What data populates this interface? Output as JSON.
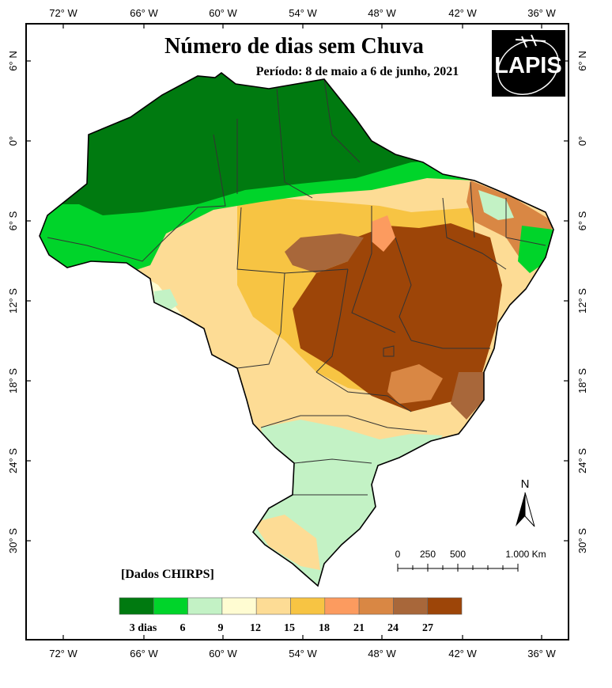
{
  "title": "Número de dias sem Chuva",
  "subtitle": "Período: 8 de maio a 6 de junho, 2021",
  "source": "[Dados CHIRPS]",
  "logo_text": "LAPIS",
  "north_label": "N",
  "longitudes": [
    "72° W",
    "66° W",
    "60° W",
    "54° W",
    "48° W",
    "42° W",
    "36° W"
  ],
  "latitudes": [
    "6° N",
    "0°",
    "6° S",
    "12° S",
    "18° S",
    "24° S",
    "30° S"
  ],
  "scale_bar": {
    "labels": [
      "0",
      "250",
      "500",
      "1.000 Km"
    ]
  },
  "legend": {
    "colors": [
      "#007a10",
      "#00d42a",
      "#c3f2c5",
      "#fffcd2",
      "#fddc95",
      "#f7c443",
      "#fc9b5f",
      "#d98744",
      "#a8673a",
      "#9d4508"
    ],
    "labels": [
      "3 dias",
      "6",
      "9",
      "12",
      "15",
      "18",
      "21",
      "24",
      "27"
    ]
  }
}
